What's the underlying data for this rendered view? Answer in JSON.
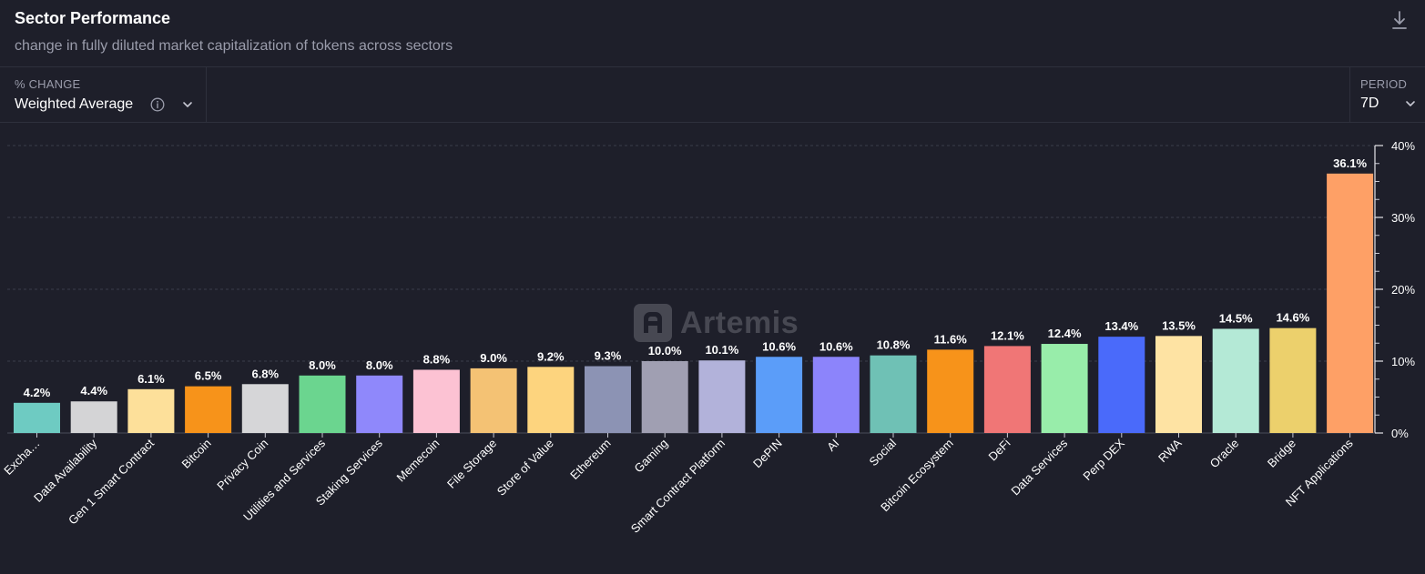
{
  "header": {
    "title": "Sector Performance",
    "subtitle": "change in fully diluted market capitalization of tokens across sectors",
    "download_icon": "download-icon"
  },
  "controls": {
    "metric": {
      "label": "% CHANGE",
      "value": "Weighted Average"
    },
    "period": {
      "label": "PERIOD",
      "value": "7D"
    }
  },
  "watermark": {
    "text": "Artemis"
  },
  "chart_data": {
    "type": "bar",
    "categories": [
      "Exchange",
      "Data Availability",
      "Gen 1 Smart Contract",
      "Bitcoin",
      "Privacy Coin",
      "Utilities and Services",
      "Staking Services",
      "Memecoin",
      "File Storage",
      "Store of Value",
      "Ethereum",
      "Gaming",
      "Smart Contract Platform",
      "DePIN",
      "AI",
      "Social",
      "Bitcoin Ecosystem",
      "DeFi",
      "Data Services",
      "Perp DEX",
      "RWA",
      "Oracle",
      "Bridge",
      "NFT Applications"
    ],
    "category_labels": [
      "Excha…",
      "Data Availability",
      "Gen 1 Smart Contract",
      "Bitcoin",
      "Privacy Coin",
      "Utilities and Services",
      "Staking Services",
      "Memecoin",
      "File Storage",
      "Store of Value",
      "Ethereum",
      "Gaming",
      "Smart Contract Platform",
      "DePIN",
      "AI",
      "Social",
      "Bitcoin Ecosystem",
      "DeFi",
      "Data Services",
      "Perp DEX",
      "RWA",
      "Oracle",
      "Bridge",
      "NFT Applications"
    ],
    "values": [
      4.2,
      4.4,
      6.1,
      6.5,
      6.8,
      8.0,
      8.0,
      8.8,
      9.0,
      9.2,
      9.3,
      10.0,
      10.1,
      10.6,
      10.6,
      10.8,
      11.6,
      12.1,
      12.4,
      13.4,
      13.5,
      14.5,
      14.6,
      36.1
    ],
    "value_labels": [
      "4.2%",
      "4.4%",
      "6.1%",
      "6.5%",
      "6.8%",
      "8.0%",
      "8.0%",
      "8.8%",
      "9.0%",
      "9.2%",
      "9.3%",
      "10.0%",
      "10.1%",
      "10.6%",
      "10.6%",
      "10.8%",
      "11.6%",
      "12.1%",
      "12.4%",
      "13.4%",
      "13.5%",
      "14.5%",
      "14.6%",
      "36.1%"
    ],
    "colors": [
      "#6ecbc2",
      "#d4d4d6",
      "#fde09a",
      "#f7931a",
      "#d6d6d8",
      "#6bd58f",
      "#8f88fb",
      "#fcc2d3",
      "#f4c274",
      "#fdd47e",
      "#8c93b4",
      "#a09fb2",
      "#b2b2da",
      "#5b9df9",
      "#8c84fb",
      "#6fc1b5",
      "#f7931a",
      "#f07676",
      "#98edaa",
      "#4a6afa",
      "#fee3a3",
      "#b4e9d6",
      "#ecd06c",
      "#fea066"
    ],
    "ylim": [
      0,
      40
    ],
    "yticks": [
      0,
      10,
      20,
      30,
      40
    ],
    "ytick_labels": [
      "0%",
      "10%",
      "20%",
      "30%",
      "40%"
    ],
    "y_axis_side": "right",
    "grid": true
  }
}
